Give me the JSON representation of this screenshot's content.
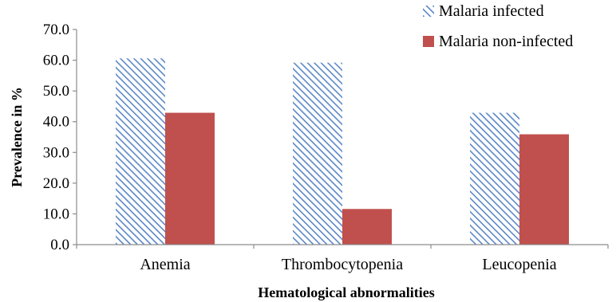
{
  "chart_data": {
    "type": "bar",
    "categories": [
      "Anemia",
      "Thrombocytopenia",
      "Leucopenia"
    ],
    "series": [
      {
        "name": "Malaria infected",
        "values": [
          60.6,
          59.2,
          42.9
        ],
        "color": "#4f81bd",
        "pattern": "diagonal-hatch"
      },
      {
        "name": "Malaria non-infected",
        "values": [
          42.9,
          11.6,
          35.9
        ],
        "color": "#c0504d",
        "pattern": "solid"
      }
    ],
    "xlabel": "Hematological abnormalities",
    "ylabel": "Prevalence in %",
    "ylim": [
      0,
      70
    ],
    "yticks": [
      0,
      10,
      20,
      30,
      40,
      50,
      60,
      70
    ],
    "ytick_labels": [
      "0.0",
      "10.0",
      "20.0",
      "30.0",
      "40.0",
      "50.0",
      "60.0",
      "70.0"
    ],
    "grid": false,
    "legend_position": "top-right"
  }
}
